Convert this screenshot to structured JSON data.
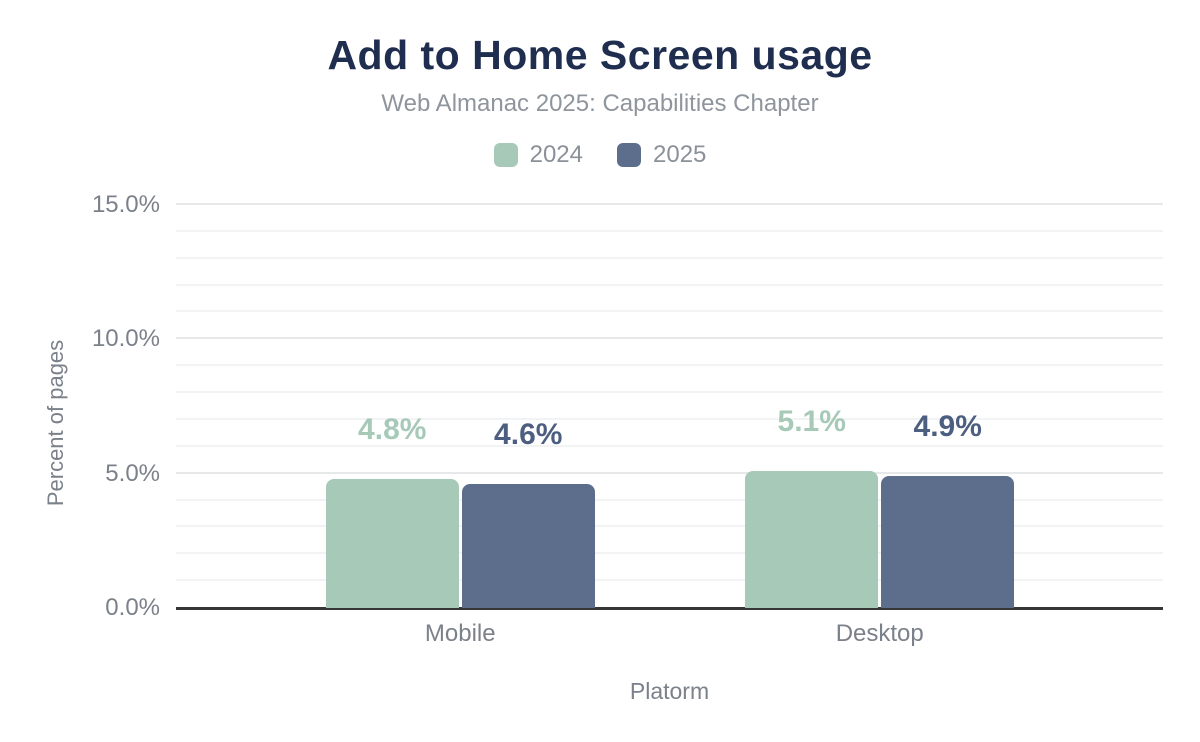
{
  "header": {
    "title": "Add to Home Screen usage",
    "subtitle": "Web Almanac 2025: Capabilities Chapter"
  },
  "legend": [
    {
      "label": "2024",
      "color": "#a6c9b8"
    },
    {
      "label": "2025",
      "color": "#5d6e8c"
    }
  ],
  "chart_data": {
    "type": "bar",
    "title": "Add to Home Screen usage",
    "subtitle": "Web Almanac 2025: Capabilities Chapter",
    "categories": [
      "Mobile",
      "Desktop"
    ],
    "series": [
      {
        "name": "2024",
        "color": "#a6c9b8",
        "label_color": "#a6c9b8",
        "values": [
          4.8,
          5.1
        ],
        "labels": [
          "4.8%",
          "5.1%"
        ]
      },
      {
        "name": "2025",
        "color": "#5d6e8c",
        "label_color": "#4d5f80",
        "values": [
          4.6,
          4.9
        ],
        "labels": [
          "4.6%",
          "4.9%"
        ]
      }
    ],
    "xlabel": "Platorm",
    "ylabel": "Percent of pages",
    "ylim": [
      0,
      15
    ],
    "grid": true,
    "legend_position": "top",
    "yticks": [
      {
        "value": 0,
        "label": "0.0%"
      },
      {
        "value": 5,
        "label": "5.0%"
      },
      {
        "value": 10,
        "label": "10.0%"
      },
      {
        "value": 15,
        "label": "15.0%"
      }
    ]
  },
  "colors": {
    "title": "#1f2d4f",
    "subtitle": "#8f959d",
    "axis_text": "#7b818a",
    "grid_minor": "#f2f3f5",
    "grid_major": "#e6e8ea",
    "baseline": "#363636",
    "series_2024": "#a6c9b8",
    "series_2025": "#5d6e8c"
  }
}
